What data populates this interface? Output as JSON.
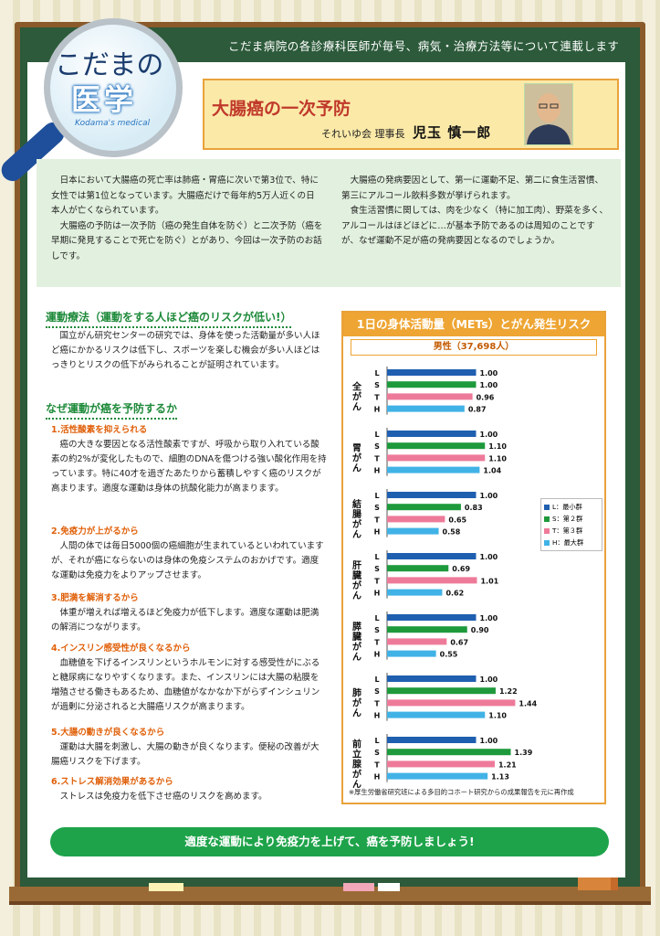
{
  "header": {
    "series_line": "こだま病院の各診療科医師が毎号、病気・治療方法等について連載します",
    "logo_main": "こだまの",
    "logo_sub": "医学",
    "logo_en": "Kodama's medical"
  },
  "article": {
    "title": "大腸癌の一次予防",
    "org": "それいゆ会 理事長",
    "author": "児玉 慎一郎"
  },
  "intro": {
    "left": [
      "日本において大腸癌の死亡率は肺癌・胃癌に次いで第3位で、特に女性では第1位となっています。大腸癌だけで毎年約5万人近くの日本人が亡くなられています。",
      "大腸癌の予防は一次予防（癌の発生自体を防ぐ）と二次予防（癌を早期に発見することで死亡を防ぐ）とがあり、今回は一次予防のお話しです。"
    ],
    "right": [
      "大腸癌の発病要因として、第一に運動不足、第二に食生活習慣、第三にアルコール飲料多数が挙げられます。",
      "食生活習慣に関しては、肉を少なく（特に加工肉）、野菜を多く、アルコールはほどほどに…が基本予防であるのは周知のことですが、なぜ運動不足が癌の発病要因となるのでしょうか。"
    ]
  },
  "section1": {
    "heading": "運動療法（運動をする人ほど癌のリスクが低い!）",
    "text": "国立がん研究センターの研究では、身体を使った活動量が多い人ほど癌にかかるリスクは低下し、スポーツを楽しむ機会が多い人ほどはっきりとリスクの低下がみられることが証明されています。"
  },
  "section2": {
    "heading": "なぜ運動が癌を予防するか",
    "items": [
      {
        "title": "1.活性酸素を抑えられる",
        "text": "癌の大きな要因となる活性酸素ですが、呼吸から取り入れている酸素の約2%が変化したもので、細胞のDNAを傷つける強い酸化作用を持っています。特に40才を過ぎたあたりから蓄積しやすく癌のリスクが高まります。適度な運動は身体の抗酸化能力が高まります。"
      },
      {
        "title": "2.免疫力が上がるから",
        "text": "人間の体では毎日5000個の癌細胞が生まれているといわれていますが、それが癌にならないのは身体の免疫システムのおかげです。適度な運動は免疫力をよりアップさせます。"
      },
      {
        "title": "3.肥満を解消するから",
        "text": "体重が増えれば増えるほど免疫力が低下します。適度な運動は肥満の解消につながります。"
      },
      {
        "title": "4.インスリン感受性が良くなるから",
        "text": "血糖値を下げるインスリンというホルモンに対する感受性がにぶると糖尿病になりやすくなります。また、インスリンには大腸の粘膜を増殖させる働きもあるため、血糖値がなかなか下がらずインシュリンが過剰に分泌されると大腸癌リスクが高まります。"
      },
      {
        "title": "5.大腸の動きが良くなるから",
        "text": "運動は大腸を刺激し、大腸の動きが良くなります。便秘の改善が大腸癌リスクを下げます。"
      },
      {
        "title": "6.ストレス解消効果があるから",
        "text": "ストレスは免疫力を低下させ癌のリスクを高めます。"
      }
    ]
  },
  "chart_data": {
    "type": "bar",
    "title": "1日の身体活動量（METs）とがん発生リスク",
    "subtitle": "男性（37,698人）",
    "categories": [
      "全がん",
      "胃がん",
      "結腸がん",
      "肝臓がん",
      "膵臓がん",
      "肺がん",
      "前立腺がん"
    ],
    "group_letters": [
      "L",
      "S",
      "T",
      "H"
    ],
    "series": [
      {
        "name": "L：最小群",
        "color": "#1f5fb0",
        "values": [
          1.0,
          1.0,
          1.0,
          1.0,
          1.0,
          1.0,
          1.0
        ]
      },
      {
        "name": "S：第２群",
        "color": "#1e9a3c",
        "values": [
          1.0,
          1.1,
          0.83,
          0.69,
          0.9,
          1.22,
          1.39
        ]
      },
      {
        "name": "T：第３群",
        "color": "#ee7a99",
        "values": [
          0.96,
          1.1,
          0.65,
          1.01,
          0.67,
          1.44,
          1.21
        ]
      },
      {
        "name": "H：最大群",
        "color": "#41b2e6",
        "values": [
          0.87,
          1.04,
          0.58,
          0.62,
          0.55,
          1.1,
          1.13
        ]
      }
    ],
    "value_labels": [
      [
        "1.00",
        "1.00",
        "0.96",
        "0.87"
      ],
      [
        "1.00",
        "1.10",
        "1.10",
        "1.04"
      ],
      [
        "1.00",
        "0.83",
        "0.65",
        "0.58"
      ],
      [
        "1.00",
        "0.69",
        "1.01",
        "0.62"
      ],
      [
        "1.00",
        "0.90",
        "0.67",
        "0.55"
      ],
      [
        "1.00",
        "1.22",
        "1.44",
        "1.10"
      ],
      [
        "1.00",
        "1.39",
        "1.21",
        "1.13"
      ]
    ],
    "xlim": [
      0,
      1.6
    ],
    "legend_position": "right-middle",
    "footnote": "※厚生労働省研究班による多目的コホート研究からの成果報告を元に再作成"
  },
  "banner": "適度な運動により免疫力を上げて、癌を予防しましょう!"
}
